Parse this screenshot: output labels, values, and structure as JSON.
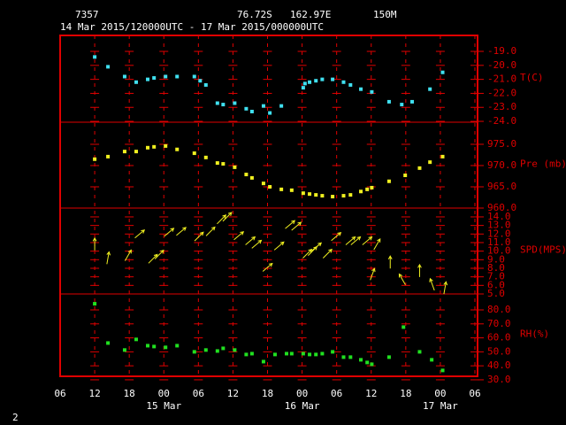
{
  "chart_data": {
    "station": "7357",
    "latitude": "76.72S",
    "longitude": "162.97E",
    "elevation": "150M",
    "period": "14 Mar 2015/120000UTC - 17 Mar 2015/000000UTC",
    "page_number": "2",
    "xlim": [
      6,
      78
    ],
    "xticks": [
      {
        "value": 6,
        "label": "06"
      },
      {
        "value": 12,
        "label": "12"
      },
      {
        "value": 18,
        "label": "18"
      },
      {
        "value": 24,
        "label": "00"
      },
      {
        "value": 30,
        "label": "06"
      },
      {
        "value": 36,
        "label": "12"
      },
      {
        "value": 42,
        "label": "18"
      },
      {
        "value": 48,
        "label": "00"
      },
      {
        "value": 54,
        "label": "06"
      },
      {
        "value": 60,
        "label": "12"
      },
      {
        "value": 66,
        "label": "18"
      },
      {
        "value": 72,
        "label": "00"
      },
      {
        "value": 78,
        "label": "06"
      }
    ],
    "date_labels": [
      {
        "value": 24,
        "label": "15 Mar"
      },
      {
        "value": 48,
        "label": "16 Mar"
      },
      {
        "value": 72,
        "label": "17 Mar"
      }
    ],
    "panels": [
      {
        "type": "scatter",
        "label": "T(C)",
        "color": "#40e0f0",
        "ylim": [
          -24.06,
          -17.86
        ],
        "yticks": [
          {
            "value": -19,
            "label": "-19.0"
          },
          {
            "value": -20,
            "label": "-20.0"
          },
          {
            "value": -21,
            "label": "-21.0"
          },
          {
            "value": -22,
            "label": "-22.0"
          },
          {
            "value": -23,
            "label": "-23.0"
          },
          {
            "value": -24,
            "label": "-24.0"
          }
        ],
        "x": [
          12,
          14.3,
          17.2,
          19.2,
          21.2,
          22.3,
          24.3,
          26.3,
          29.3,
          30.3,
          31.3,
          33.3,
          34.3,
          36.3,
          38.3,
          39.3,
          41.3,
          42.4,
          44.4,
          48.2,
          48.5,
          49.3,
          50.4,
          51.5,
          53.3,
          55.2,
          56.4,
          58.2,
          60.1,
          63.1,
          65.3,
          67.1,
          70.2,
          72.4
        ],
        "values": [
          -19.4,
          -20.1,
          -20.8,
          -21.2,
          -21.0,
          -20.9,
          -20.8,
          -20.8,
          -20.8,
          -21.1,
          -21.4,
          -22.7,
          -22.8,
          -22.7,
          -23.1,
          -23.3,
          -22.9,
          -23.4,
          -22.9,
          -21.6,
          -21.3,
          -21.2,
          -21.1,
          -21.0,
          -21.0,
          -21.2,
          -21.4,
          -21.7,
          -21.9,
          -22.6,
          -22.8,
          -22.6,
          -21.7,
          -20.5
        ]
      },
      {
        "type": "scatter",
        "label": "Pre (mb)",
        "color": "#f0f020",
        "ylim": [
          960,
          980.2
        ],
        "yticks": [
          {
            "value": 975,
            "label": "975.0"
          },
          {
            "value": 970,
            "label": "970.0"
          },
          {
            "value": 965,
            "label": "965.0"
          },
          {
            "value": 960,
            "label": "960.0"
          }
        ],
        "x": [
          12,
          14.3,
          17.2,
          19.2,
          21.2,
          22.3,
          24.3,
          26.3,
          29.3,
          31.3,
          33.3,
          34.3,
          36.3,
          38.3,
          39.3,
          41.3,
          42.4,
          44.4,
          46.2,
          48.2,
          49.3,
          50.4,
          51.5,
          53.3,
          55.2,
          56.4,
          58.2,
          59.3,
          60.1,
          63.1,
          65.9,
          68.4,
          70.2,
          72.4
        ],
        "values": [
          971.5,
          972.1,
          973.3,
          973.3,
          974.2,
          974.4,
          974.6,
          973.8,
          972.9,
          971.9,
          970.6,
          970.4,
          969.6,
          967.9,
          967.1,
          965.8,
          965.0,
          964.4,
          964.2,
          963.5,
          963.3,
          963.1,
          962.9,
          962.7,
          962.9,
          963.1,
          963.9,
          964.4,
          964.8,
          966.3,
          967.7,
          969.4,
          970.8,
          972.1
        ]
      },
      {
        "type": "vector",
        "label": "SPD(MPS)",
        "color": "#f0f020",
        "ylim": [
          5,
          15.03
        ],
        "yticks": [
          {
            "value": 14,
            "label": "14.0"
          },
          {
            "value": 13,
            "label": "13.0"
          },
          {
            "value": 12,
            "label": "12.0"
          },
          {
            "value": 11,
            "label": "11.0"
          },
          {
            "value": 10,
            "label": "10.0"
          },
          {
            "value": 9,
            "label": "9.0"
          },
          {
            "value": 8,
            "label": "8.0"
          },
          {
            "value": 7,
            "label": "7.0"
          },
          {
            "value": 6,
            "label": "6.0"
          },
          {
            "value": 5,
            "label": "5.0"
          }
        ],
        "x": [
          12,
          14.3,
          17.8,
          19.8,
          22.1,
          23.2,
          24.9,
          27,
          30.1,
          32.1,
          34,
          35,
          37,
          39,
          40.1,
          42,
          44,
          45.9,
          47,
          48.9,
          49.8,
          50.5,
          52.4,
          53.9,
          56.4,
          57.3,
          59.3,
          60.2,
          61,
          63.3,
          65.4,
          68.4,
          70.6,
          72.8
        ],
        "values": [
          10.8,
          9.2,
          9.5,
          12.0,
          9.1,
          9.6,
          12.2,
          12.3,
          11.7,
          12.3,
          13.7,
          14.0,
          11.8,
          11.2,
          10.8,
          8.1,
          10.6,
          13.1,
          12.9,
          9.7,
          10.0,
          10.5,
          9.7,
          11.7,
          11.2,
          11.2,
          11.2,
          7.3,
          10.8,
          8.7,
          6.7,
          7.7,
          6.1,
          5.7
        ],
        "directions": [
          0,
          10,
          30,
          50,
          45,
          45,
          50,
          50,
          45,
          45,
          45,
          45,
          50,
          50,
          50,
          50,
          50,
          50,
          50,
          45,
          45,
          50,
          45,
          50,
          50,
          50,
          50,
          20,
          30,
          0,
          330,
          0,
          340,
          10
        ]
      },
      {
        "type": "scatter",
        "label": "RH(%)",
        "color": "#20e020",
        "ylim": [
          32.5,
          91.4
        ],
        "yticks": [
          {
            "value": 80,
            "label": "80.0"
          },
          {
            "value": 70,
            "label": "70.0"
          },
          {
            "value": 60,
            "label": "60.0"
          },
          {
            "value": 50,
            "label": "50.0"
          },
          {
            "value": 40,
            "label": "40.0"
          },
          {
            "value": 30,
            "label": "30.0"
          }
        ],
        "x": [
          12,
          14.3,
          17.2,
          19.2,
          21.2,
          22.3,
          24.3,
          26.3,
          29.3,
          31.3,
          33.3,
          34.3,
          36.3,
          38.3,
          39.3,
          41.3,
          43.3,
          45.3,
          46.2,
          48.2,
          49.3,
          50.4,
          51.5,
          53.3,
          55.2,
          56.4,
          58.2,
          59.3,
          60.1,
          63.1,
          65.6,
          68.4,
          70.5,
          72.4
        ],
        "values": [
          84.4,
          56.3,
          51.3,
          58.9,
          54.4,
          53.8,
          53.2,
          54.4,
          50.0,
          51.3,
          50.6,
          52.5,
          51.3,
          48.1,
          48.7,
          43.0,
          48.1,
          48.7,
          48.7,
          48.7,
          48.1,
          48.1,
          48.7,
          50.0,
          46.2,
          46.2,
          44.3,
          42.4,
          41.1,
          46.2,
          67.7,
          50.0,
          44.3,
          36.7
        ]
      }
    ]
  }
}
